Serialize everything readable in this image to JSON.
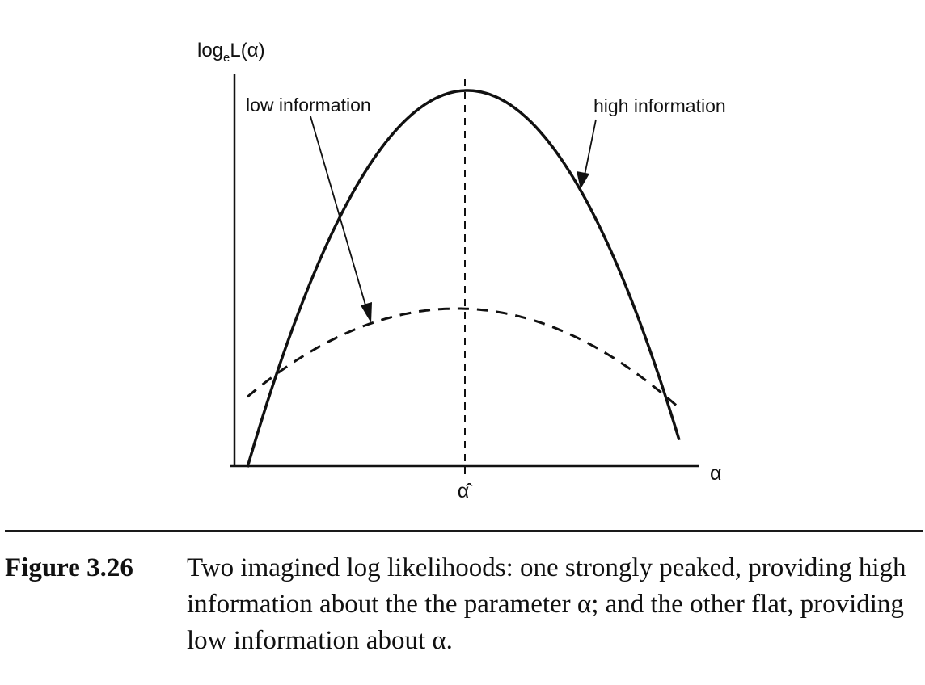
{
  "figure": {
    "y_axis_label_main": "log",
    "y_axis_label_sub": "e",
    "y_axis_label_rest": "L(α)",
    "x_axis_label": "α",
    "x_tick_label": "α̂",
    "annotation_low": "low information",
    "annotation_high": "high information",
    "colors": {
      "ink": "#111111",
      "background": "#ffffff"
    }
  },
  "chart_data": {
    "type": "line",
    "series": [
      {
        "name": "high information",
        "style": "solid",
        "shape": "strongly peaked"
      },
      {
        "name": "low information",
        "style": "dashed",
        "shape": "flat"
      }
    ],
    "grid": false,
    "legend": "none"
  },
  "caption": {
    "label": "Figure 3.26",
    "text": "Two imagined log likelihoods: one strongly peaked, providing high information about the the parameter α; and the other flat, providing low information about α."
  }
}
